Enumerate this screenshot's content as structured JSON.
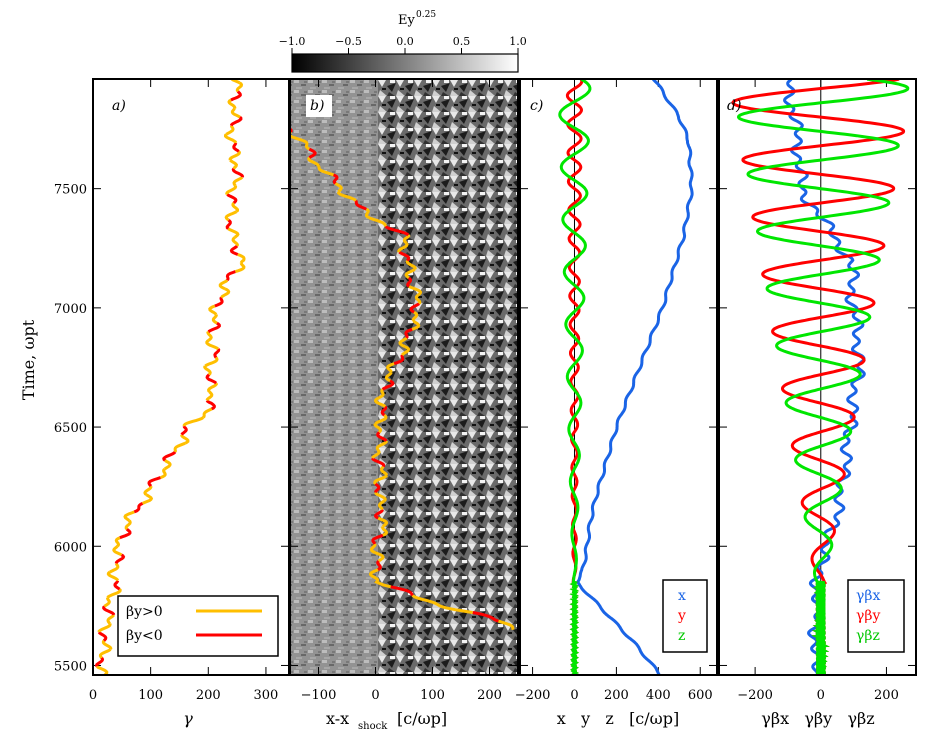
{
  "chart_data": [
    {
      "panel": "a)",
      "type": "line",
      "xlabel": "γ",
      "ylabel": "Time, ωpt",
      "xlim": [
        0,
        340
      ],
      "ylim": [
        5460,
        7960
      ],
      "xticks": [
        "0",
        "100",
        "200",
        "300"
      ],
      "yticks": [
        "5500",
        "6000",
        "6500",
        "7000",
        "7500"
      ],
      "legend": [
        {
          "label": "βy>0",
          "color": "#ffbf00"
        },
        {
          "label": "βy<0",
          "color": "#ff0000"
        }
      ],
      "trace": {
        "t": [
          5460,
          5600,
          5750,
          5850,
          5900,
          6000,
          6100,
          6200,
          6280,
          6350,
          6450,
          6500,
          6600,
          6700,
          6800,
          6900,
          7000,
          7100,
          7200,
          7300,
          7400,
          7500,
          7600,
          7700,
          7800,
          7960
        ],
        "gamma": [
          15,
          20,
          28,
          40,
          38,
          45,
          60,
          90,
          110,
          130,
          155,
          165,
          210,
          200,
          210,
          205,
          215,
          230,
          260,
          240,
          240,
          245,
          250,
          240,
          245,
          250
        ]
      }
    },
    {
      "panel": "b)",
      "type": "heatmap",
      "xlabel": "x-x",
      "xlabel_sub": "shock",
      "xlabel_units": "[c/ωp]",
      "xlim": [
        -150,
        250
      ],
      "ylim": [
        5460,
        7960
      ],
      "xticks": [
        "−100",
        "0",
        "100",
        "200"
      ],
      "colorbar": {
        "label": "Ey",
        "label_exp": "0.25",
        "range": [
          -1.0,
          1.0
        ],
        "ticks": [
          "−1.0",
          "−0.5",
          "0.0",
          "0.5",
          "1.0"
        ]
      },
      "trace": {
        "t": [
          5650,
          5700,
          5750,
          5800,
          5850,
          5900,
          6000,
          6100,
          6200,
          6300,
          6400,
          6500,
          6600,
          6700,
          6800,
          6900,
          7000,
          7100,
          7200,
          7300,
          7350,
          7400,
          7500,
          7600,
          7700,
          7750
        ],
        "x": [
          250,
          200,
          120,
          60,
          0,
          5,
          0,
          15,
          5,
          10,
          5,
          10,
          10,
          20,
          45,
          60,
          75,
          65,
          55,
          50,
          20,
          -20,
          -60,
          -100,
          -130,
          -150
        ]
      }
    },
    {
      "panel": "c)",
      "type": "line",
      "xlabel": "x   y   z   [c/ωp]",
      "xlim": [
        -260,
        680
      ],
      "ylim": [
        5460,
        7960
      ],
      "xticks": [
        "−200",
        "0",
        "200",
        "400",
        "600"
      ],
      "series": [
        {
          "name": "x",
          "color": "#1a64e6",
          "t": [
            5460,
            5600,
            5850,
            5900,
            6000,
            6100,
            6200,
            6500,
            7000,
            7300,
            7500,
            7700,
            7800,
            7960
          ],
          "values": [
            410,
            280,
            10,
            40,
            60,
            75,
            100,
            200,
            420,
            520,
            560,
            545,
            500,
            380
          ]
        },
        {
          "name": "y",
          "color": "#ff0000",
          "amp_start": 6,
          "amp_end": 35,
          "period": 120
        },
        {
          "name": "z",
          "color": "#00e600",
          "amp_start": 6,
          "amp_end": 75,
          "period": 220
        }
      ]
    },
    {
      "panel": "d)",
      "type": "line",
      "xlabel": "γβx   γβy   γβz",
      "xlim": [
        -310,
        290
      ],
      "ylim": [
        5460,
        7960
      ],
      "xticks": [
        "−200",
        "0",
        "200"
      ],
      "series": [
        {
          "name": "γβx",
          "color": "#1a64e6",
          "t": [
            5460,
            5900,
            6000,
            6200,
            6500,
            6800,
            7000,
            7200,
            7500,
            7700,
            7960
          ],
          "values": [
            -20,
            -10,
            20,
            60,
            90,
            120,
            100,
            90,
            -60,
            -70,
            -100
          ]
        },
        {
          "name": "γβy",
          "color": "#ff0000",
          "amp_start": 15,
          "amp_end": 280,
          "period": 240
        },
        {
          "name": "γβz",
          "color": "#00e600",
          "amp_start": 15,
          "amp_end": 270,
          "period": 240
        }
      ]
    }
  ]
}
